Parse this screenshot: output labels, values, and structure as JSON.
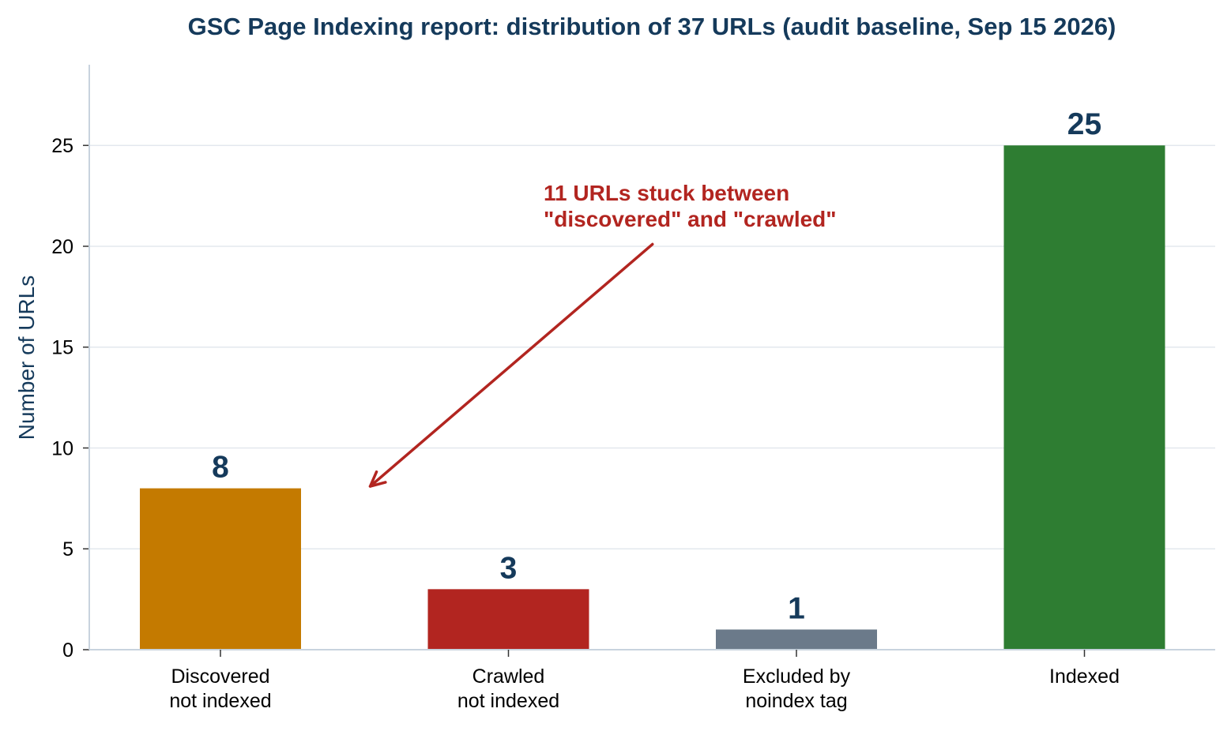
{
  "chart_data": {
    "type": "bar",
    "title": "GSC Page Indexing report: distribution of 37 URLs (audit baseline, Sep 15 2026)",
    "ylabel": "Number of URLs",
    "xlabel": "",
    "categories": [
      [
        "Discovered",
        "not indexed"
      ],
      [
        "Crawled",
        "not indexed"
      ],
      [
        "Excluded by",
        "noindex tag"
      ],
      [
        "Indexed"
      ]
    ],
    "values": [
      8,
      3,
      1,
      25
    ],
    "data_labels": [
      "8",
      "3",
      "1",
      "25"
    ],
    "colors": [
      "#c47a00",
      "#b22520",
      "#6b7a8a",
      "#2e7d32"
    ],
    "ylim": [
      0,
      29
    ],
    "yticks": [
      0,
      5,
      10,
      15,
      20,
      25
    ],
    "grid": true,
    "annotation": {
      "lines": [
        "11 URLs stuck between",
        "\"discovered\" and \"crawled\""
      ],
      "color": "#b22520",
      "arrow_from": {
        "x": 1.5,
        "y": 20.1
      },
      "arrow_to": {
        "x": 0.52,
        "y": 8.1
      }
    }
  }
}
